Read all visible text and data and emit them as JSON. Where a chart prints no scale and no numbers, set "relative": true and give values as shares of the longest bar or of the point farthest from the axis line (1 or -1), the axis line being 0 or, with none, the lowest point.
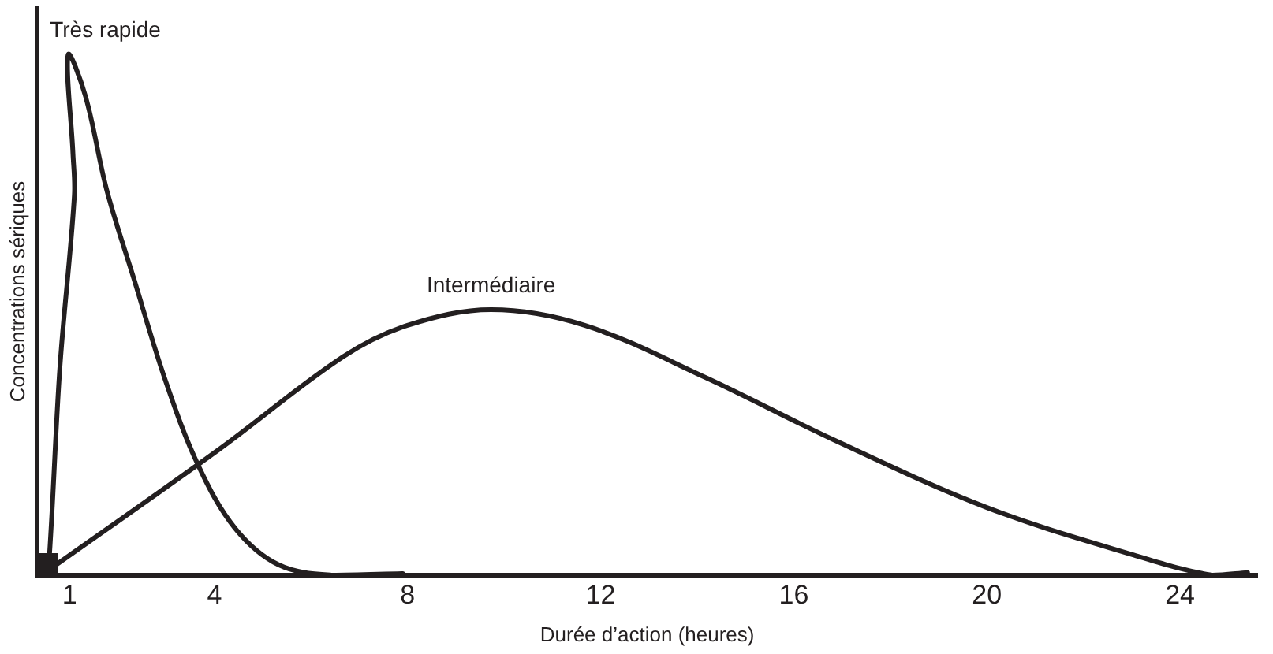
{
  "chart_data": {
    "type": "line",
    "relative": true,
    "xlabel": "Durée d’action (heures)",
    "ylabel": "Concentrations sériques",
    "xlim": [
      0.33,
      25.6
    ],
    "xticks": [
      1,
      4,
      8,
      12,
      16,
      20,
      24
    ],
    "grid": false,
    "legend": false,
    "marker": "none",
    "line_style": "solid",
    "series": [
      {
        "name": "Très rapide",
        "color": "#231f20",
        "x": [
          0.5,
          0.57,
          0.8,
          1.1,
          1.07,
          0.97,
          1.33,
          1.77,
          2.33,
          3.0,
          3.67,
          4.43,
          5.33,
          6.43,
          7.9
        ],
        "values": [
          0,
          0.02,
          0.4,
          0.73,
          0.81,
          1,
          0.92,
          0.74,
          0.57,
          0.37,
          0.21,
          0.09,
          0.02,
          0,
          0.003
        ]
      },
      {
        "name": "Intermédiaire",
        "color": "#231f20",
        "x": [
          0.57,
          4.07,
          6.67,
          8.0,
          9.73,
          11.67,
          14.17,
          16.83,
          20.0,
          23.0,
          24.67,
          25.4
        ],
        "values": [
          0.01,
          0.24,
          0.42,
          0.48,
          0.51,
          0.48,
          0.38,
          0.26,
          0.13,
          0.04,
          0,
          0.005
        ]
      }
    ]
  }
}
